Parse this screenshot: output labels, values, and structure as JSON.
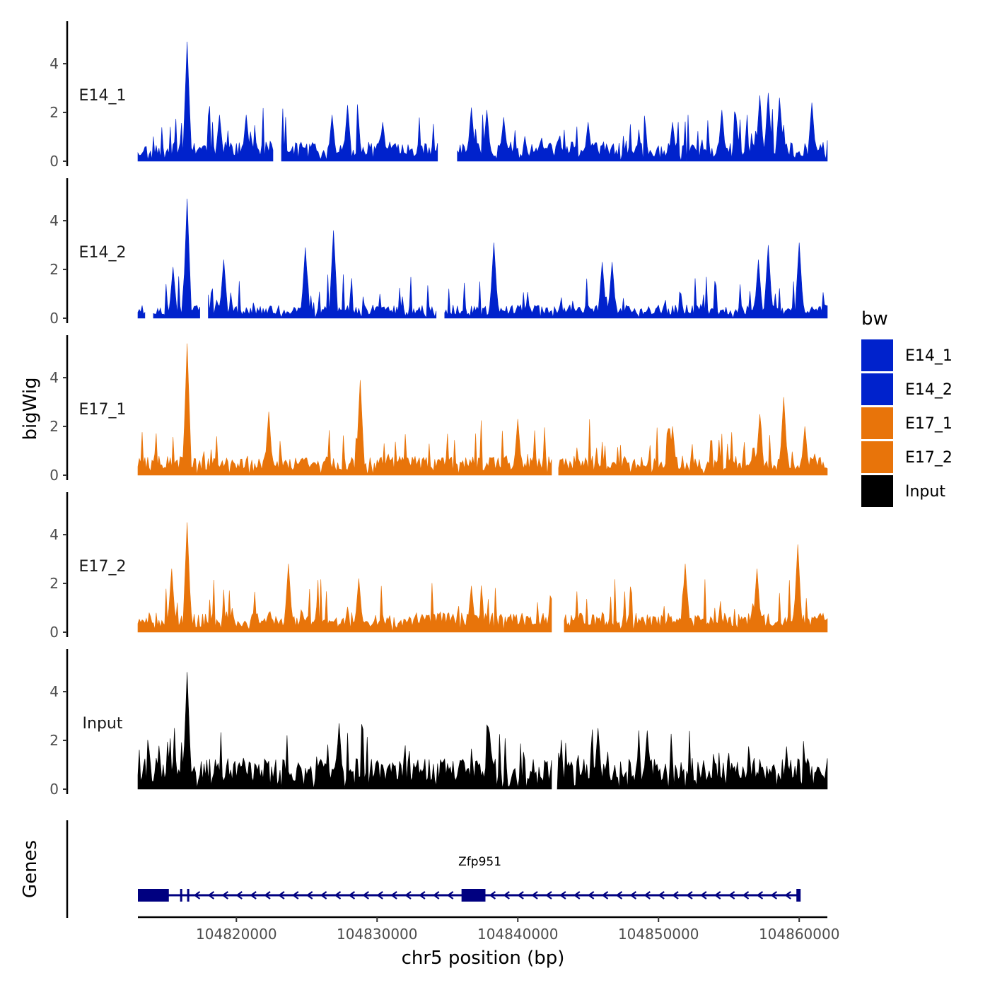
{
  "chart_data": {
    "type": "area",
    "title": "",
    "chromosome": "chr5",
    "xlabel": "chr5 position (bp)",
    "ylabel": "bigWig",
    "xlim": [
      104813000,
      104862000
    ],
    "x_ticks": [
      104820000,
      104830000,
      104840000,
      104850000,
      104860000
    ],
    "x_tick_labels": [
      "104820000",
      "104830000",
      "104840000",
      "104850000",
      "104860000"
    ],
    "ylim": [
      0,
      5.8
    ],
    "y_ticks": [
      0,
      2,
      4
    ],
    "y_tick_labels": [
      "0",
      "2",
      "4"
    ],
    "bin_size": 100,
    "legend": {
      "title": "bw",
      "position": "right",
      "entries": [
        {
          "label": "E14_1",
          "color": "#0022CC"
        },
        {
          "label": "E14_2",
          "color": "#0022CC"
        },
        {
          "label": "E17_1",
          "color": "#E8740A"
        },
        {
          "label": "E17_2",
          "color": "#E8740A"
        },
        {
          "label": "Input",
          "color": "#000000"
        }
      ]
    },
    "tracks": [
      {
        "name": "E14_1",
        "color": "#0022CC",
        "start": 104813000,
        "end": 104862000,
        "gaps": [
          [
            104822700,
            104823100
          ],
          [
            104834400,
            104835600
          ]
        ],
        "peaks": [
          [
            104816500,
            4.9
          ],
          [
            104818800,
            1.9
          ],
          [
            104820700,
            1.9
          ],
          [
            104826800,
            1.9
          ],
          [
            104827900,
            2.3
          ],
          [
            104830400,
            1.6
          ],
          [
            104836700,
            2.2
          ],
          [
            104837800,
            2.1
          ],
          [
            104839000,
            1.8
          ],
          [
            104845000,
            1.6
          ],
          [
            104851000,
            1.6
          ],
          [
            104854500,
            2.1
          ],
          [
            104855500,
            1.9
          ],
          [
            104857200,
            2.7
          ],
          [
            104857800,
            2.8
          ],
          [
            104858600,
            2.6
          ],
          [
            104860900,
            2.4
          ]
        ],
        "baseline": 0.5,
        "noise": 1.0,
        "seed": 11
      },
      {
        "name": "E14_2",
        "color": "#0022CC",
        "start": 104813000,
        "end": 104862000,
        "gaps": [
          [
            104813600,
            104814000
          ],
          [
            104817500,
            104817900
          ],
          [
            104834300,
            104834700
          ]
        ],
        "peaks": [
          [
            104816500,
            4.9
          ],
          [
            104815500,
            2.1
          ],
          [
            104819100,
            2.4
          ],
          [
            104824900,
            2.9
          ],
          [
            104826900,
            3.6
          ],
          [
            104838300,
            3.1
          ],
          [
            104846000,
            2.3
          ],
          [
            104846700,
            2.3
          ],
          [
            104857100,
            2.4
          ],
          [
            104857800,
            3.0
          ],
          [
            104860000,
            3.1
          ]
        ],
        "baseline": 0.35,
        "noise": 0.8,
        "seed": 23
      },
      {
        "name": "E17_1",
        "color": "#E8740A",
        "start": 104813000,
        "end": 104862000,
        "gaps": [
          [
            104842500,
            104842800
          ]
        ],
        "peaks": [
          [
            104816500,
            5.4
          ],
          [
            104822300,
            2.6
          ],
          [
            104828800,
            3.9
          ],
          [
            104840000,
            2.3
          ],
          [
            104851000,
            2.0
          ],
          [
            104857200,
            2.5
          ],
          [
            104858900,
            3.2
          ],
          [
            104860400,
            2.0
          ]
        ],
        "baseline": 0.5,
        "noise": 1.0,
        "seed": 37
      },
      {
        "name": "E17_2",
        "color": "#E8740A",
        "start": 104813000,
        "end": 104862000,
        "gaps": [
          [
            104842500,
            104843200
          ]
        ],
        "peaks": [
          [
            104816500,
            4.5
          ],
          [
            104815400,
            2.6
          ],
          [
            104823700,
            2.8
          ],
          [
            104828700,
            2.2
          ],
          [
            104836700,
            1.9
          ],
          [
            104851900,
            2.8
          ],
          [
            104857000,
            2.6
          ],
          [
            104859900,
            3.6
          ]
        ],
        "baseline": 0.5,
        "noise": 1.0,
        "seed": 51
      },
      {
        "name": "Input",
        "color": "#000000",
        "start": 104813000,
        "end": 104862000,
        "gaps": [
          [
            104842500,
            104842700
          ]
        ],
        "peaks": [
          [
            104816500,
            4.8
          ],
          [
            104827300,
            2.7
          ],
          [
            104838000,
            2.3
          ],
          [
            104845700,
            2.5
          ],
          [
            104849200,
            2.4
          ]
        ],
        "baseline": 0.8,
        "noise": 1.0,
        "seed": 67
      }
    ],
    "genes_track": {
      "title": "Genes",
      "gene": {
        "name": "Zfp951",
        "strand": "-",
        "start": 104813000,
        "end": 104860000,
        "color": "#000080",
        "exons": [
          [
            104813000,
            104815200
          ],
          [
            104816000,
            104816100
          ],
          [
            104816500,
            104816600
          ],
          [
            104836000,
            104837700
          ],
          [
            104859800,
            104860100
          ]
        ]
      }
    }
  }
}
